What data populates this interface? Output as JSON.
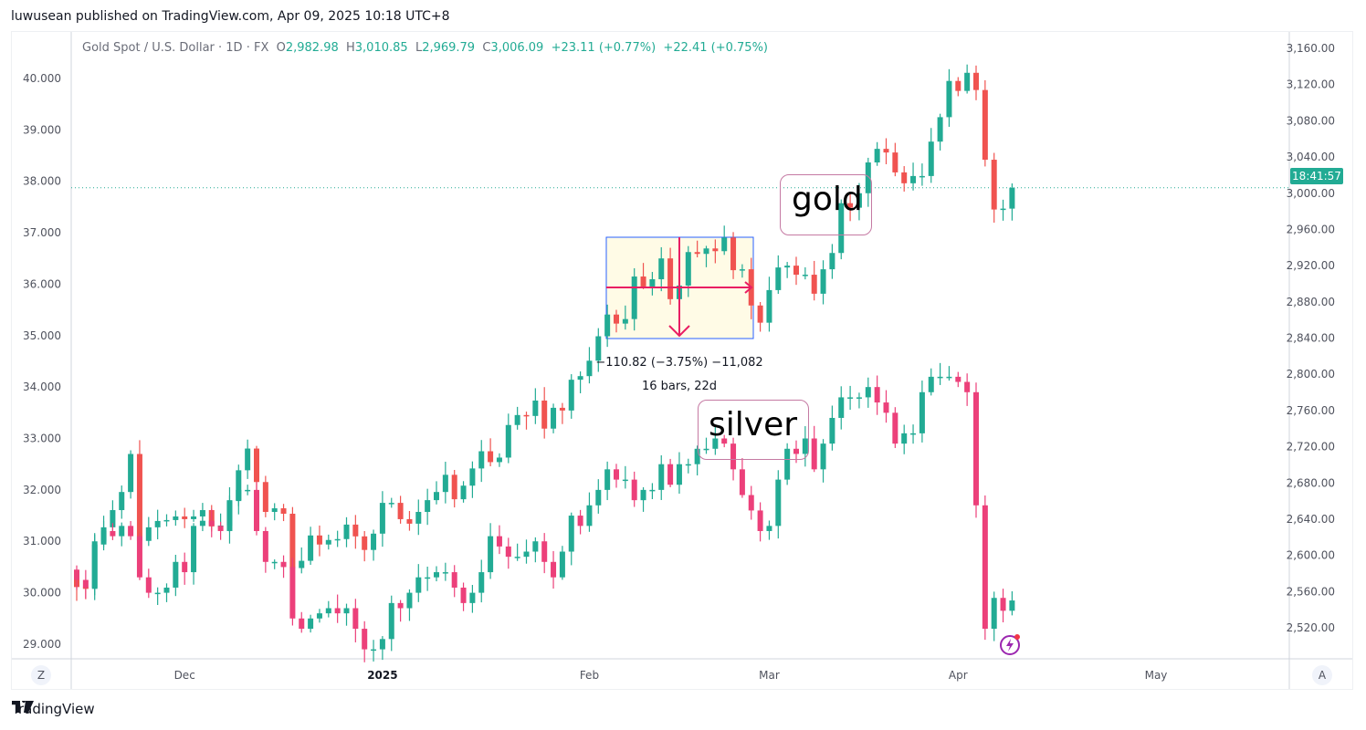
{
  "publisher_line": "luwusean published on TradingView.com, Apr 09, 2025 10:18 UTC+8",
  "legend": {
    "symbol": "Gold Spot / U.S. Dollar · 1D · FX",
    "o_label": "O",
    "o": "2,982.98",
    "h_label": "H",
    "h": "3,010.85",
    "l_label": "L",
    "l": "2,969.79",
    "c_label": "C",
    "c": "3,006.09",
    "change": "+23.11 (+0.77%)",
    "change2": "+22.41 (+0.75%)"
  },
  "countdown": "18:41:57",
  "annotations": {
    "gold": "gold",
    "silver": "silver",
    "measure_line1": "−110.82 (−3.75%) −11,082",
    "measure_line2": "16 bars, 22d"
  },
  "axis_buttons": {
    "left": "Z",
    "right": "A"
  },
  "brand": "TradingView",
  "colors": {
    "up": "#22ab94",
    "gold_down": "#f05350",
    "silver_down": "#ec407a",
    "measure_box": "#2962ff",
    "measure_arrow": "#e91e63"
  },
  "chart_data": {
    "type": "candlestick",
    "title": "Gold Spot / U.S. Dollar · 1D · FX",
    "time_labels": [
      {
        "label": "Dec",
        "bar": 12
      },
      {
        "label": "2025",
        "bar": 34
      },
      {
        "label": "Feb",
        "bar": 57
      },
      {
        "label": "Mar",
        "bar": 77
      },
      {
        "label": "Apr",
        "bar": 98
      },
      {
        "label": "May",
        "bar": 120
      }
    ],
    "right_axis": {
      "series": "gold",
      "ylim": [
        2500,
        3180
      ],
      "ticks": [
        "3,160.00",
        "3,120.00",
        "3,080.00",
        "3,040.00",
        "3,000.00",
        "2,960.00",
        "2,920.00",
        "2,880.00",
        "2,840.00",
        "2,800.00",
        "2,760.00",
        "2,720.00",
        "2,680.00",
        "2,640.00",
        "2,600.00",
        "2,560.00",
        "2,520.00"
      ],
      "tick_values": [
        3160,
        3120,
        3080,
        3040,
        3000,
        2960,
        2920,
        2880,
        2840,
        2800,
        2760,
        2720,
        2680,
        2640,
        2600,
        2560,
        2520
      ]
    },
    "left_axis": {
      "series": "silver",
      "ylim": [
        28.7,
        40.9
      ],
      "ticks": [
        "40.000",
        "39.000",
        "38.000",
        "37.000",
        "36.000",
        "35.000",
        "34.000",
        "33.000",
        "32.000",
        "31.000",
        "30.000",
        "29.000"
      ],
      "tick_values": [
        40,
        39,
        38,
        37,
        36,
        35,
        34,
        33,
        32,
        31,
        30,
        29
      ]
    },
    "series": [
      {
        "name": "gold",
        "first_open": 2573,
        "last_bar": {
          "open": 2982.98,
          "high": 3010.85,
          "low": 2969.79,
          "close": 3006.09
        },
        "close": [
          2565,
          2563,
          2612,
          2631,
          2650,
          2670,
          2712,
          2616,
          2631,
          2638,
          2639,
          2643,
          2640,
          2643,
          2650,
          2632,
          2633,
          2660,
          2694,
          2718,
          2681,
          2648,
          2652,
          2646,
          2586,
          2594,
          2622,
          2612,
          2617,
          2618,
          2634,
          2621,
          2606,
          2624,
          2658,
          2658,
          2640,
          2635,
          2648,
          2661,
          2670,
          2689,
          2662,
          2677,
          2696,
          2715,
          2703,
          2708,
          2744,
          2755,
          2754,
          2771,
          2740,
          2763,
          2760,
          2794,
          2798,
          2815,
          2842,
          2866,
          2856,
          2861,
          2908,
          2897,
          2905,
          2928,
          2883,
          2898,
          2935,
          2933,
          2939,
          2936,
          2951,
          2915,
          2916,
          2876,
          2857,
          2893,
          2918,
          2920,
          2910,
          2910,
          2889,
          2916,
          2934,
          2989,
          2984,
          3000,
          3034,
          3049,
          3045,
          3023,
          3011,
          3019,
          3019,
          3057,
          3084,
          3124,
          3113,
          3133,
          3114,
          3037,
          2982,
          2983,
          3006.09
        ]
      },
      {
        "name": "silver",
        "first_open": 30.45,
        "close": [
          30.25,
          30.1,
          31.0,
          31.2,
          31.1,
          31.3,
          31.1,
          30.3,
          30.0,
          30.0,
          30.1,
          30.6,
          30.4,
          31.3,
          31.4,
          31.3,
          31.2,
          31.8,
          32.0,
          32.0,
          31.2,
          30.6,
          30.6,
          30.5,
          29.5,
          29.3,
          29.5,
          29.6,
          29.7,
          29.6,
          29.7,
          29.3,
          28.9,
          28.9,
          29.1,
          29.8,
          29.7,
          30.0,
          30.3,
          30.3,
          30.4,
          30.4,
          30.1,
          29.8,
          30.0,
          30.4,
          31.1,
          30.9,
          30.7,
          30.7,
          30.8,
          31.0,
          30.6,
          30.3,
          30.8,
          31.5,
          31.3,
          31.7,
          32.0,
          32.4,
          32.2,
          32.2,
          31.8,
          32.0,
          32.0,
          32.5,
          32.1,
          32.5,
          32.5,
          32.8,
          32.8,
          33.0,
          32.9,
          32.4,
          31.9,
          31.6,
          31.2,
          31.3,
          32.2,
          32.8,
          32.7,
          33.0,
          32.4,
          32.9,
          33.4,
          33.8,
          33.8,
          33.8,
          34.0,
          33.7,
          33.5,
          32.9,
          33.1,
          33.1,
          33.9,
          34.2,
          34.2,
          34.2,
          34.1,
          33.9,
          31.7,
          29.3,
          29.9,
          29.65,
          29.85
        ]
      }
    ],
    "current_price_line": 3006.09,
    "measure": {
      "change": -110.82,
      "percent": -3.75,
      "bars": 16,
      "days": 22
    }
  }
}
